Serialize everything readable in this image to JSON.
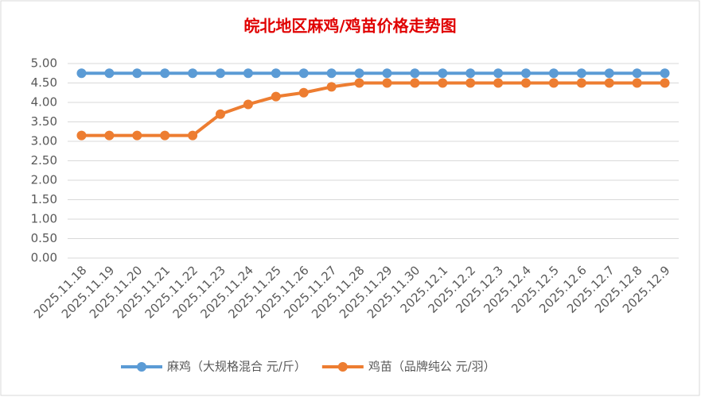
{
  "chart_data": {
    "type": "line",
    "title": "皖北地区麻鸡/鸡苗价格走势图",
    "categories": [
      "2025.11.18",
      "2025.11.19",
      "2025.11.20",
      "2025.11.21",
      "2025.11.22",
      "2025.11.23",
      "2025.11.24",
      "2025.11.25",
      "2025.11.26",
      "2025.11.27",
      "2025.11.28",
      "2025.11.29",
      "2025.11.30",
      "2025.12.1",
      "2025.12.2",
      "2025.12.3",
      "2025.12.4",
      "2025.12.5",
      "2025.12.6",
      "2025.12.7",
      "2025.12.8",
      "2025.12.9"
    ],
    "series": [
      {
        "name": "麻鸡（大规格混合 元/斤）",
        "color": "#5b9bd5",
        "values": [
          4.75,
          4.75,
          4.75,
          4.75,
          4.75,
          4.75,
          4.75,
          4.75,
          4.75,
          4.75,
          4.75,
          4.75,
          4.75,
          4.75,
          4.75,
          4.75,
          4.75,
          4.75,
          4.75,
          4.75,
          4.75,
          4.75
        ]
      },
      {
        "name": "鸡苗（品牌纯公 元/羽）",
        "color": "#ed7d31",
        "values": [
          3.15,
          3.15,
          3.15,
          3.15,
          3.15,
          3.7,
          3.95,
          4.15,
          4.25,
          4.4,
          4.5,
          4.5,
          4.5,
          4.5,
          4.5,
          4.5,
          4.5,
          4.5,
          4.5,
          4.5,
          4.5,
          4.5
        ]
      }
    ],
    "ylim": [
      0,
      5
    ],
    "yticks": [
      {
        "value": 0,
        "label": "0.00"
      },
      {
        "value": 0.5,
        "label": "0.50"
      },
      {
        "value": 1,
        "label": "1.00"
      },
      {
        "value": 1.5,
        "label": "1.50"
      },
      {
        "value": 2,
        "label": "2.00"
      },
      {
        "value": 2.5,
        "label": "2.50"
      },
      {
        "value": 3,
        "label": "3.00"
      },
      {
        "value": 3.5,
        "label": "3.50"
      },
      {
        "value": 4,
        "label": "4.00"
      },
      {
        "value": 4.5,
        "label": "4.50"
      },
      {
        "value": 5,
        "label": "5.00"
      }
    ],
    "grid": true,
    "legend": "bottom"
  }
}
